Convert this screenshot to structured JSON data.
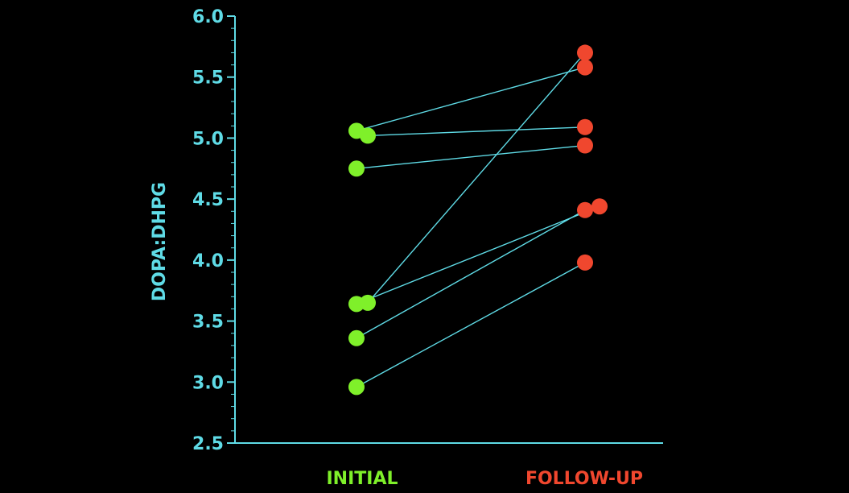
{
  "chart_data": {
    "type": "scatter",
    "ylabel": "DOPA:DHPG",
    "ylim": [
      2.5,
      6.0
    ],
    "yticks": [
      "2.5",
      "3.0",
      "3.5",
      "4.0",
      "4.5",
      "5.0",
      "5.5",
      "6.0"
    ],
    "categories": [
      "INITIAL",
      "FOLLOW-UP"
    ],
    "pairs": [
      {
        "initial": 5.06,
        "follow_up": 5.58
      },
      {
        "initial": 5.02,
        "follow_up": 5.09
      },
      {
        "initial": 4.75,
        "follow_up": 4.94
      },
      {
        "initial": 3.65,
        "follow_up": 5.7
      },
      {
        "initial": 3.64,
        "follow_up": 4.44
      },
      {
        "initial": 3.36,
        "follow_up": 4.41
      },
      {
        "initial": 2.96,
        "follow_up": 3.98
      }
    ],
    "colors": {
      "axis": "#5fdbe6",
      "initial": "#7ff02a",
      "follow_up": "#f0472e",
      "line": "#5fdbe6",
      "background": "#000000"
    }
  }
}
